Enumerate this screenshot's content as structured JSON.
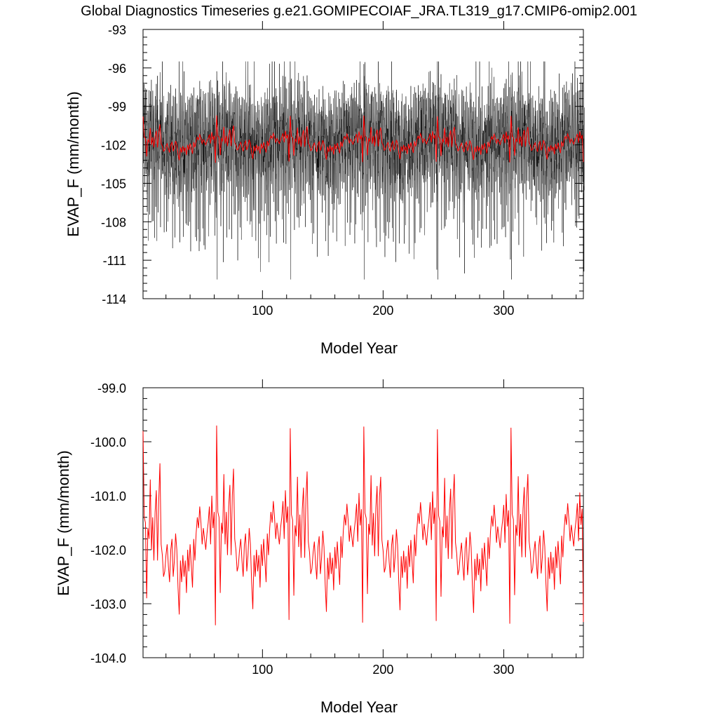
{
  "figure": {
    "title": "Global Diagnostics Timeseries g.e21.GOMIPECOIAF_JRA.TL319_g17.CMIP6-omip2.001"
  },
  "colors": {
    "monthly_series": "#000000",
    "annual_series": "#ff0000",
    "axes": "#000000"
  },
  "chart_data": [
    {
      "type": "line",
      "xlabel": "Model Year",
      "ylabel": "EVAP_F (mm/month)",
      "xlim": [
        1,
        366
      ],
      "ylim": [
        -114,
        -93
      ],
      "xticks": [
        100,
        200,
        300
      ],
      "yticks": [
        -114,
        -111,
        -108,
        -105,
        -102,
        -99,
        -96,
        -93
      ],
      "ytick_labels": [
        "-114",
        "-111",
        "-108",
        "-105",
        "-102",
        "-99",
        "-96",
        "-93"
      ],
      "series": [
        {
          "role": "monthly",
          "color": "#000000",
          "resolution": "monthly",
          "description_values": {
            "min": -112.5,
            "max": -95.5,
            "typical_range": [
              -108.5,
              -97.0
            ],
            "low_spike_years": [
              62,
              123,
              184,
              245,
              306
            ]
          }
        },
        {
          "role": "annual",
          "color": "#ff0000",
          "resolution": "annual"
        }
      ]
    },
    {
      "type": "line",
      "xlabel": "Model Year",
      "ylabel": "EVAP_F (mm/month)",
      "xlim": [
        1,
        366
      ],
      "ylim": [
        -104.0,
        -99.0
      ],
      "xticks": [
        100,
        200,
        300
      ],
      "yticks": [
        -104.0,
        -103.0,
        -102.0,
        -101.0,
        -100.0,
        -99.0
      ],
      "ytick_labels": [
        "-104.0",
        "-103.0",
        "-102.0",
        "-101.0",
        "-100.0",
        "-99.0"
      ],
      "series": [
        {
          "role": "annual",
          "color": "#ff0000",
          "resolution": "annual",
          "x_start": 1,
          "cycle_length": 61,
          "cycle_values": [
            -99.8,
            -101.4,
            -101.5,
            -102.9,
            -101.6,
            -101.8,
            -100.7,
            -102.0,
            -101.4,
            -102.2,
            -101.3,
            -100.9,
            -102.2,
            -101.1,
            -100.4,
            -101.9,
            -102.1,
            -102.5,
            -102.4,
            -102.1,
            -101.9,
            -102.3,
            -102.6,
            -102.0,
            -101.8,
            -102.5,
            -102.2,
            -101.7,
            -102.0,
            -102.7,
            -103.2,
            -102.2,
            -102.6,
            -102.1,
            -102.5,
            -102.2,
            -102.8,
            -102.0,
            -102.4,
            -101.9,
            -102.3,
            -102.7,
            -101.8,
            -102.2,
            -101.7,
            -101.4,
            -101.6,
            -101.2,
            -101.5,
            -101.9,
            -101.6,
            -101.8,
            -102.0,
            -101.7,
            -101.5,
            -101.2,
            -101.9,
            -101.0,
            -101.6,
            -101.3,
            -103.4
          ],
          "cycle_variants": [
            {
              "offset": 0,
              "peak": -100.4
            },
            {
              "offset": 0.1,
              "peak": -100.5
            },
            {
              "offset": 0.05,
              "peak": -100.55
            },
            {
              "offset": 0.08,
              "peak": -100.65
            },
            {
              "offset": 0.03,
              "peak": -100.6
            },
            {
              "offset": 0.06,
              "peak": -100.6
            }
          ]
        }
      ]
    }
  ]
}
